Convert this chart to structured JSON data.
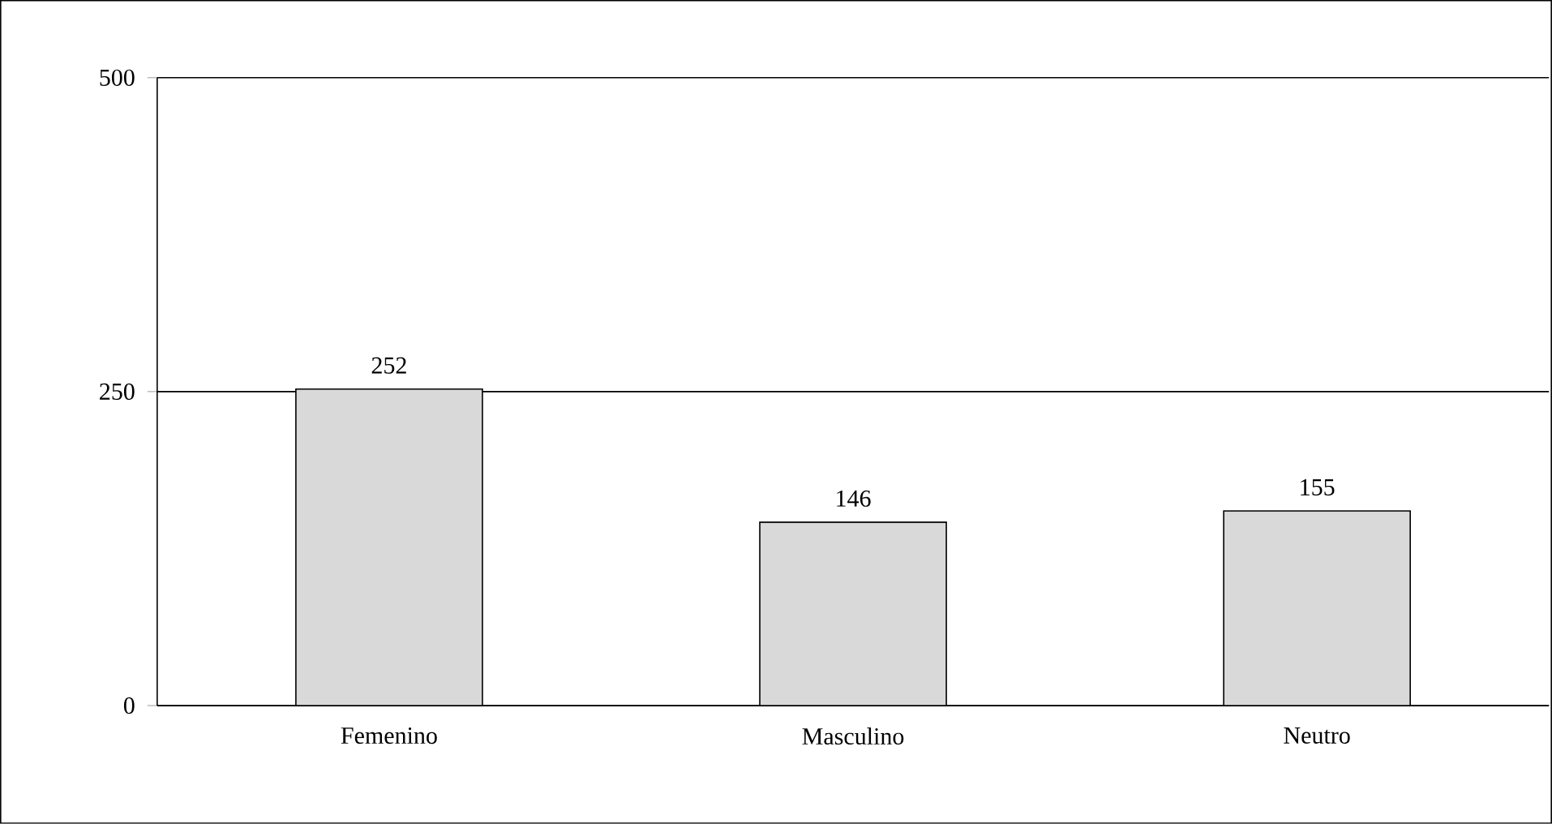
{
  "chart_data": {
    "type": "bar",
    "categories": [
      "Femenino",
      "Masculino",
      "Neutro"
    ],
    "values": [
      252,
      146,
      155
    ],
    "color": "#d9d9d9",
    "ylim": [
      0,
      500
    ],
    "yticks": [
      0,
      250,
      500
    ],
    "grid": "y",
    "data_labels": true
  }
}
